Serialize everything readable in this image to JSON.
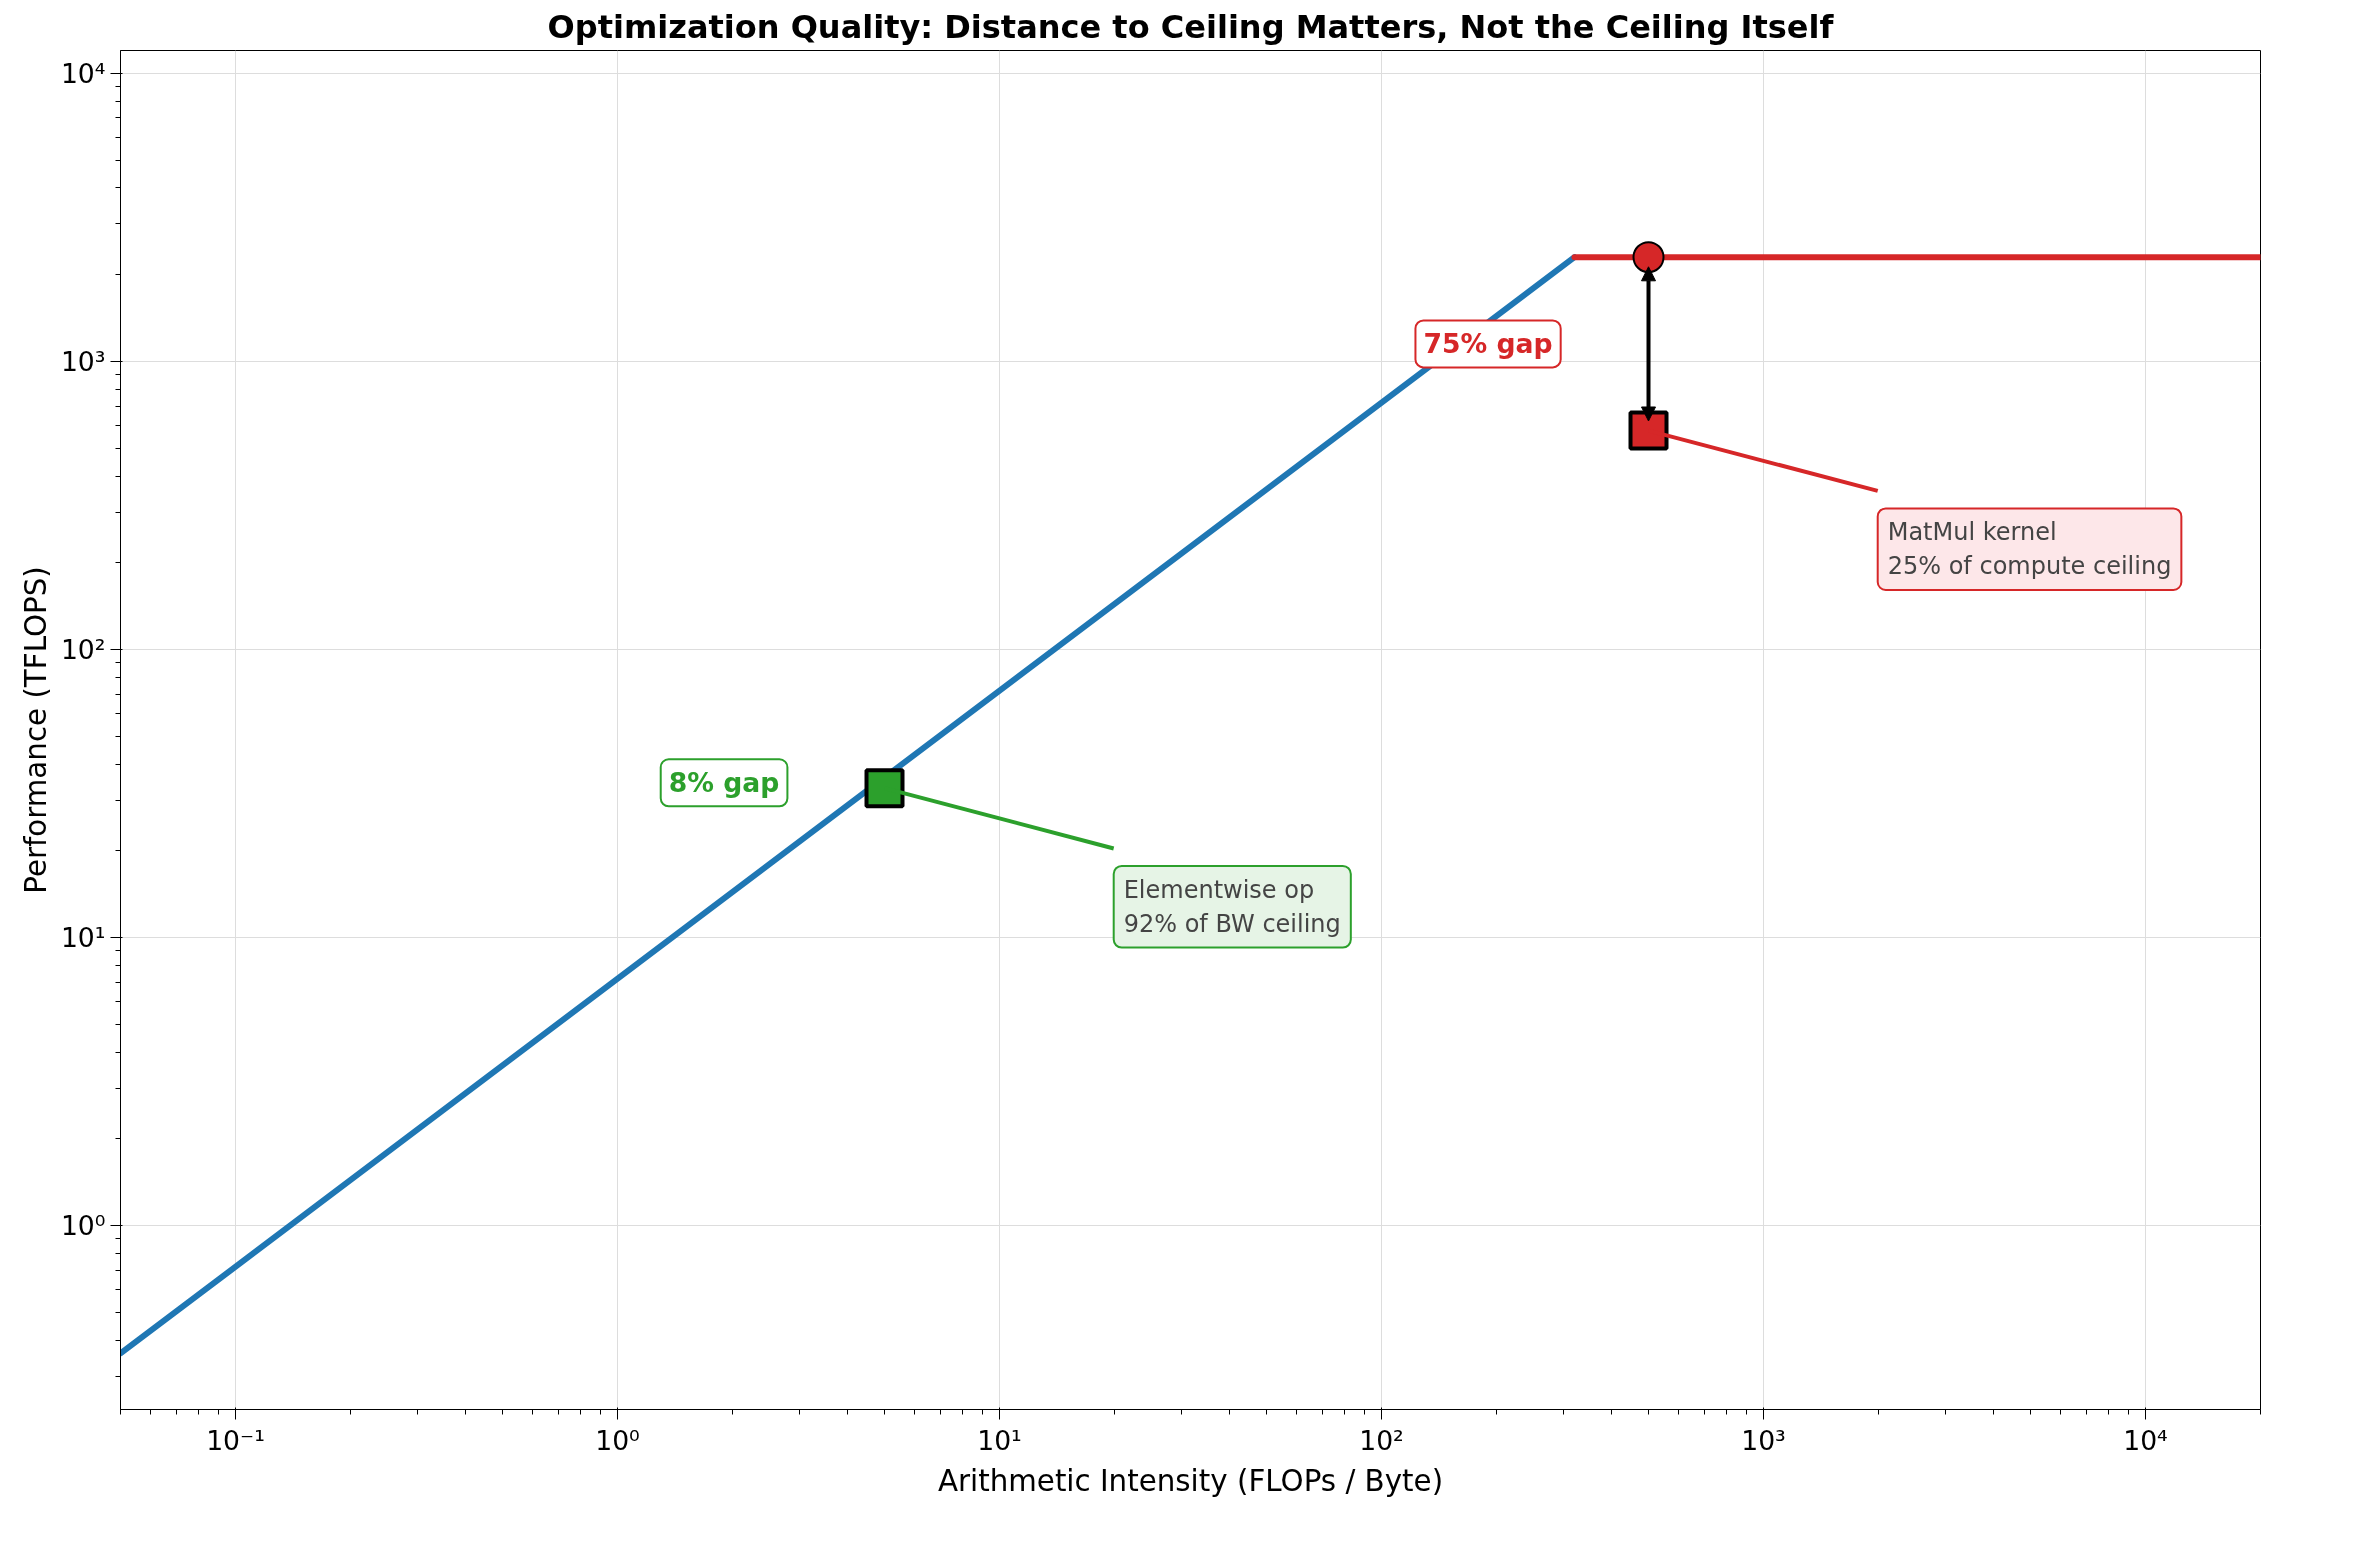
{
  "chart_data": {
    "type": "line",
    "title": "Optimization Quality: Distance to Ceiling Matters, Not the Ceiling Itself",
    "xlabel": "Arithmetic Intensity (FLOPs / Byte)",
    "ylabel": "Performance (TFLOPS)",
    "log": "xy",
    "grid": true,
    "xlim": [
      0.05,
      20000
    ],
    "ylim": [
      0.23,
      12000
    ],
    "xticks": [
      {
        "value": 0.1,
        "label": "10⁻¹"
      },
      {
        "value": 1,
        "label": "10⁰"
      },
      {
        "value": 10,
        "label": "10¹"
      },
      {
        "value": 100,
        "label": "10²"
      },
      {
        "value": 1000,
        "label": "10³"
      },
      {
        "value": 10000,
        "label": "10⁴"
      }
    ],
    "yticks": [
      {
        "value": 1,
        "label": "10⁰"
      },
      {
        "value": 10,
        "label": "10¹"
      },
      {
        "value": 100,
        "label": "10²"
      },
      {
        "value": 1000,
        "label": "10³"
      },
      {
        "value": 10000,
        "label": "10⁴"
      }
    ],
    "series": [
      {
        "color": "#1f77b4",
        "x": [
          0.05,
          320
        ],
        "values": [
          0.36,
          2300
        ]
      },
      {
        "color": "#d62728",
        "x": [
          320,
          20000
        ],
        "values": [
          2300,
          2300
        ]
      },
      {
        "type": "scatter",
        "marker": "circle",
        "color": "#d62728",
        "x": [
          500
        ],
        "values": [
          2300
        ]
      },
      {
        "type": "scatter",
        "marker": "square",
        "color": "#2ca02c",
        "x": [
          5
        ],
        "values": [
          33
        ]
      },
      {
        "type": "scatter",
        "marker": "square",
        "color": "#d62728",
        "x": [
          500
        ],
        "values": [
          575
        ]
      }
    ],
    "annotations": [
      "8% gap",
      "75% gap",
      {
        "text": "Elementwise op\n92% of BW ceiling",
        "x": 5,
        "y": 33
      },
      {
        "text": "MatMul kernel\n25% of compute ceiling",
        "x": 500,
        "y": 575
      }
    ]
  }
}
